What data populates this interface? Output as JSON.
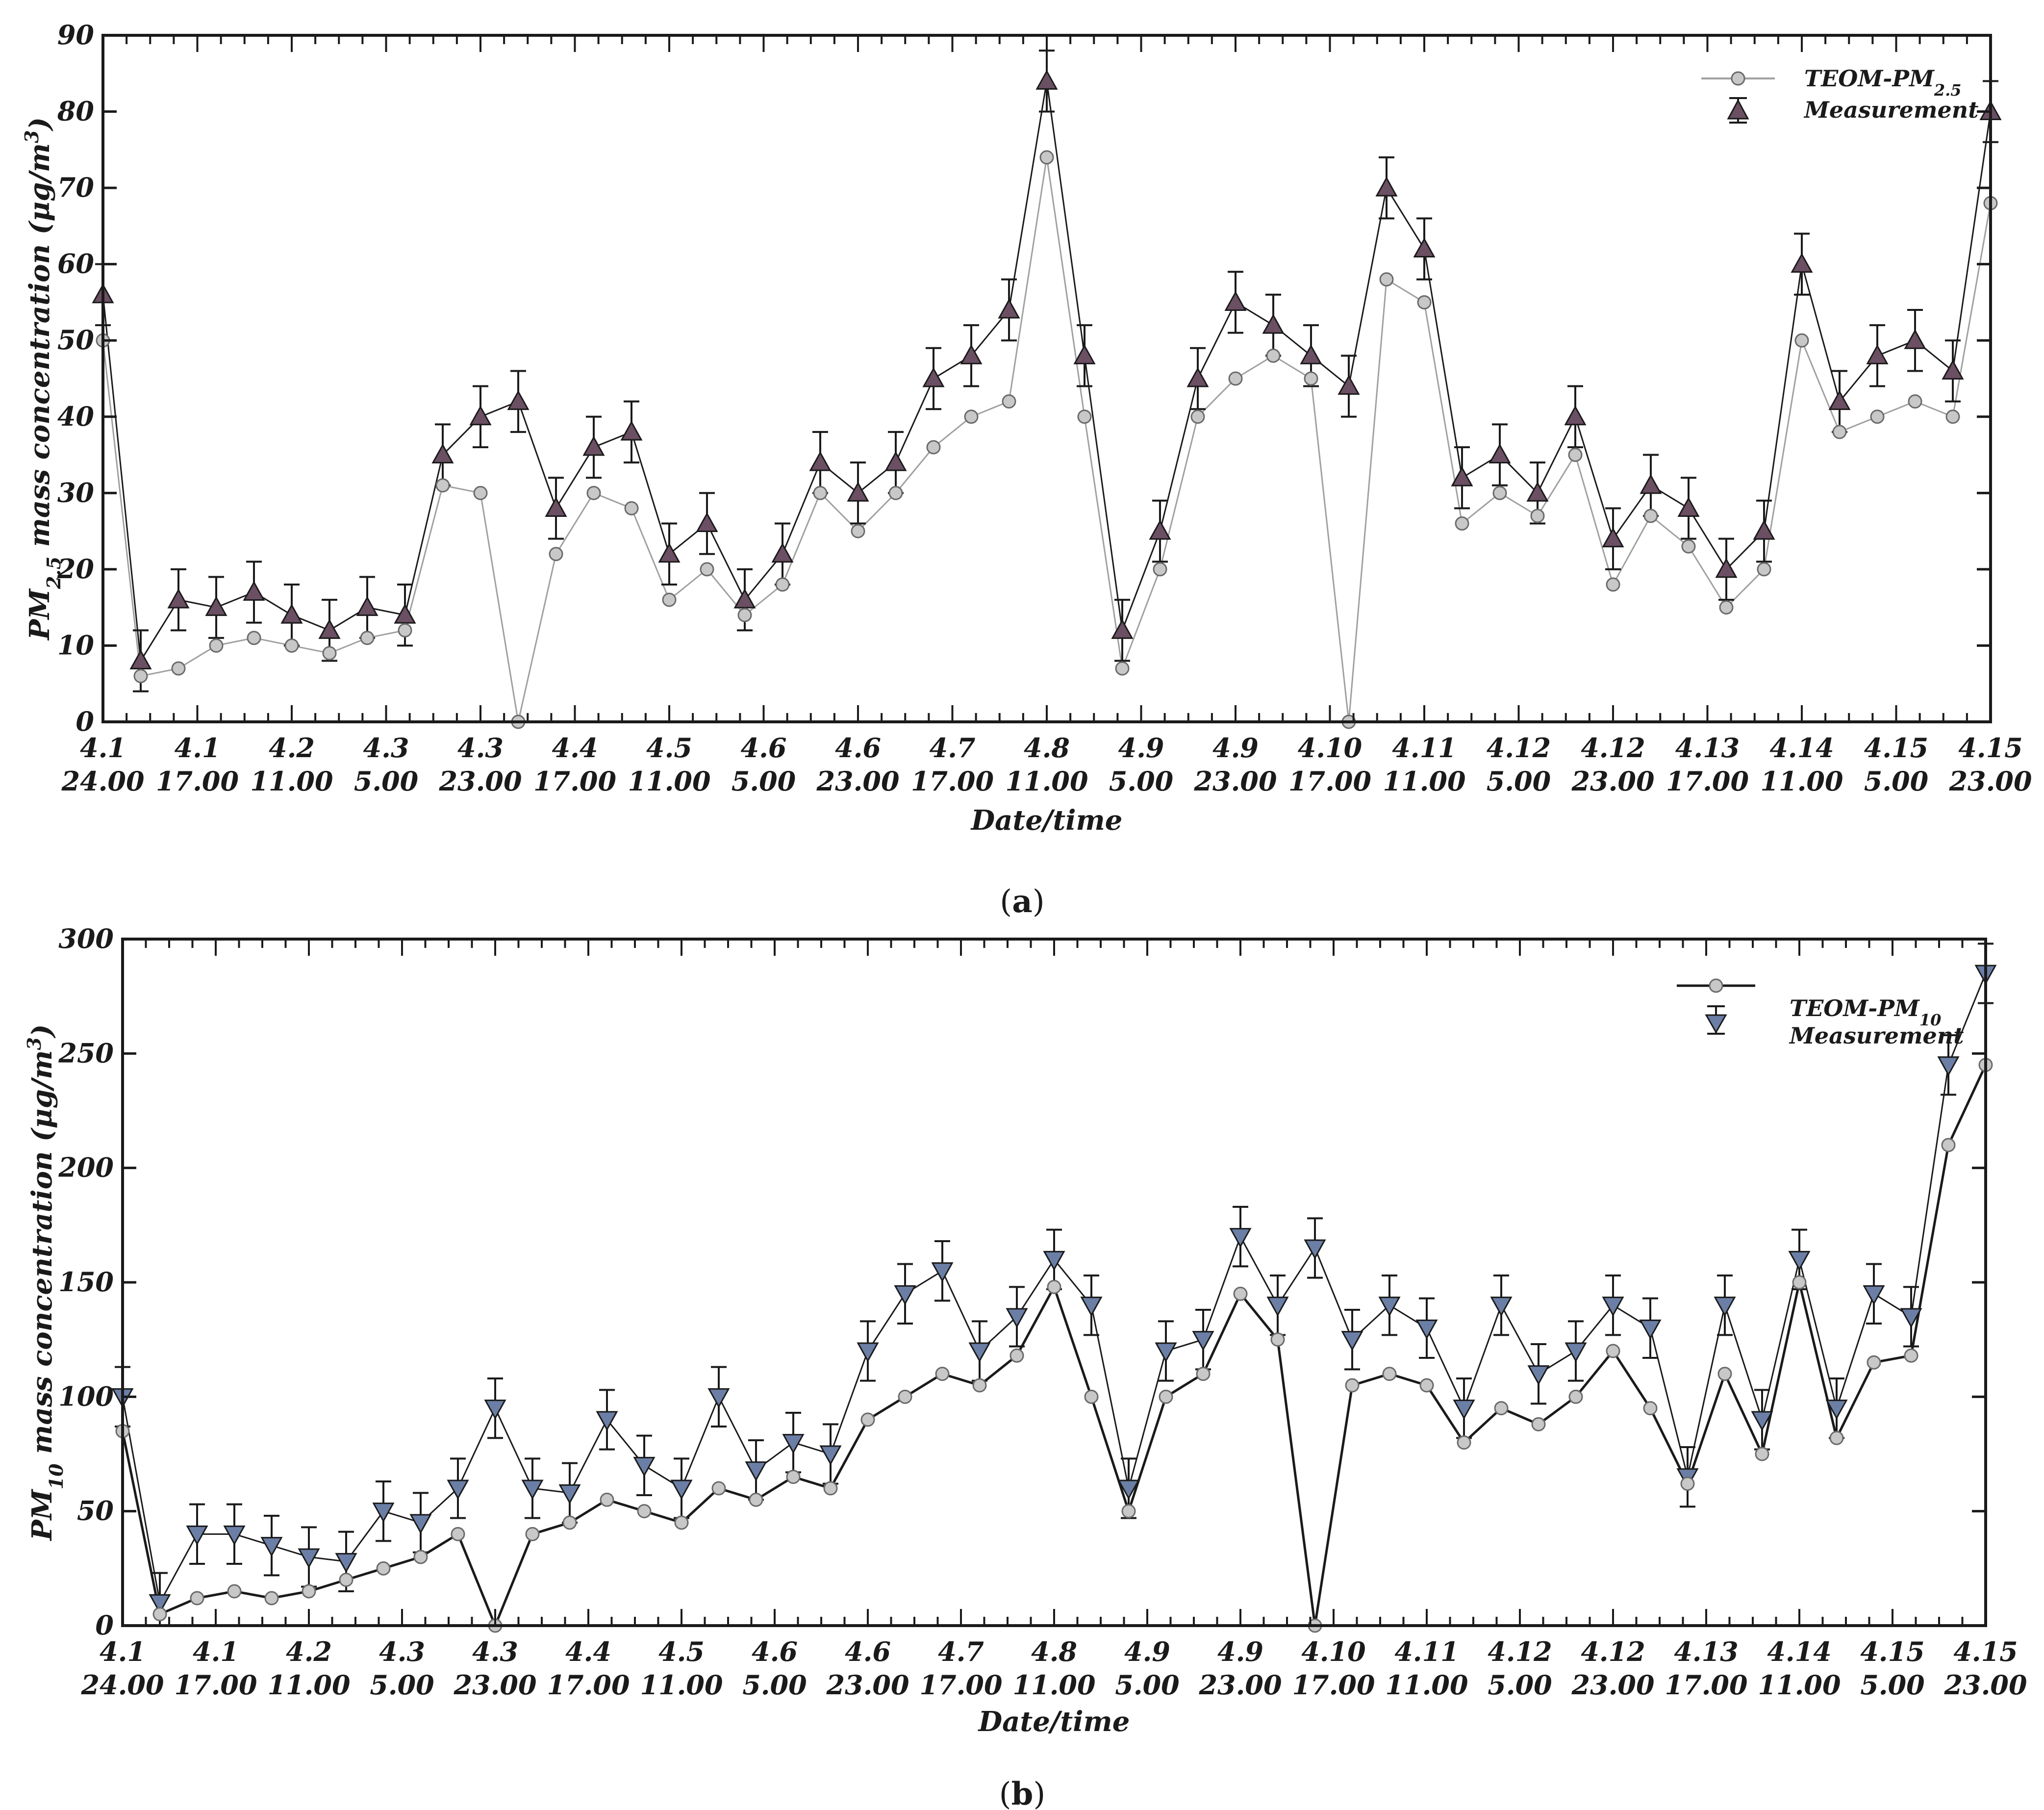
{
  "chart_data": [
    {
      "type": "line",
      "panel_label": "a",
      "title": "",
      "xlabel": "Date/time",
      "ylabel": "PM2.5 mass concentration (μg/m3)",
      "ylabel_parts": {
        "pre": "PM",
        "sub": "2.5",
        "mid": " mass concentration (μg/m",
        "sup": "3",
        "post": ")"
      },
      "ylim": [
        0,
        90
      ],
      "yticks": [
        0,
        10,
        20,
        30,
        40,
        50,
        60,
        70,
        80,
        90
      ],
      "xlim": [
        0,
        1
      ],
      "xtick_labels": [
        {
          "x": 0.0,
          "line1": "4.1",
          "line2": "24.00"
        },
        {
          "x": 0.05,
          "line1": "4.1",
          "line2": "17.00"
        },
        {
          "x": 0.1,
          "line1": "4.2",
          "line2": "11.00"
        },
        {
          "x": 0.15,
          "line1": "4.3",
          "line2": "5.00"
        },
        {
          "x": 0.2,
          "line1": "4.3",
          "line2": "23.00"
        },
        {
          "x": 0.25,
          "line1": "4.4",
          "line2": "17.00"
        },
        {
          "x": 0.3,
          "line1": "4.5",
          "line2": "11.00"
        },
        {
          "x": 0.35,
          "line1": "4.6",
          "line2": "5.00"
        },
        {
          "x": 0.4,
          "line1": "4.6",
          "line2": "23.00"
        },
        {
          "x": 0.45,
          "line1": "4.7",
          "line2": "17.00"
        },
        {
          "x": 0.5,
          "line1": "4.8",
          "line2": "11.00"
        },
        {
          "x": 0.55,
          "line1": "4.9",
          "line2": "5.00"
        },
        {
          "x": 0.6,
          "line1": "4.9",
          "line2": "23.00"
        },
        {
          "x": 0.65,
          "line1": "4.10",
          "line2": "17.00"
        },
        {
          "x": 0.7,
          "line1": "4.11",
          "line2": "11.00"
        },
        {
          "x": 0.75,
          "line1": "4.12",
          "line2": "5.00"
        },
        {
          "x": 0.8,
          "line1": "4.12",
          "line2": "23.00"
        },
        {
          "x": 0.85,
          "line1": "4.13",
          "line2": "17.00"
        },
        {
          "x": 0.9,
          "line1": "4.14",
          "line2": "11.00"
        },
        {
          "x": 0.95,
          "line1": "4.15",
          "line2": "5.00"
        },
        {
          "x": 1.0,
          "line1": "4.15",
          "line2": "23.00"
        }
      ],
      "legend": {
        "placement": "top-right",
        "entries": [
          "TEOM-PM2.5",
          "Measurement"
        ]
      },
      "legend_parts": {
        "pre": "TEOM-PM",
        "sub": "2.5"
      },
      "series": [
        {
          "name": "TEOM-PM2.5",
          "marker": "circle",
          "x": [
            0.0,
            0.02,
            0.04,
            0.06,
            0.08,
            0.1,
            0.12,
            0.14,
            0.16,
            0.18,
            0.2,
            0.22,
            0.24,
            0.26,
            0.28,
            0.3,
            0.32,
            0.34,
            0.36,
            0.38,
            0.4,
            0.42,
            0.44,
            0.46,
            0.48,
            0.5,
            0.52,
            0.54,
            0.56,
            0.58,
            0.6,
            0.62,
            0.64,
            0.66,
            0.68,
            0.7,
            0.72,
            0.74,
            0.76,
            0.78,
            0.8,
            0.82,
            0.84,
            0.86,
            0.88,
            0.9,
            0.92,
            0.94,
            0.96,
            0.98,
            1.0
          ],
          "values": [
            50,
            6,
            7,
            10,
            11,
            10,
            9,
            11,
            12,
            31,
            30,
            0,
            22,
            30,
            28,
            16,
            20,
            14,
            18,
            30,
            25,
            30,
            36,
            40,
            42,
            74,
            40,
            7,
            20,
            40,
            45,
            48,
            45,
            0,
            58,
            55,
            26,
            30,
            27,
            35,
            18,
            27,
            23,
            15,
            20,
            50,
            38,
            40,
            42,
            40,
            68
          ]
        },
        {
          "name": "Measurement",
          "marker": "triangle-up",
          "x": [
            0.0,
            0.02,
            0.04,
            0.06,
            0.08,
            0.1,
            0.12,
            0.14,
            0.16,
            0.18,
            0.2,
            0.22,
            0.24,
            0.26,
            0.28,
            0.3,
            0.32,
            0.34,
            0.36,
            0.38,
            0.4,
            0.42,
            0.44,
            0.46,
            0.48,
            0.5,
            0.52,
            0.54,
            0.56,
            0.58,
            0.6,
            0.62,
            0.64,
            0.66,
            0.68,
            0.7,
            0.72,
            0.74,
            0.76,
            0.78,
            0.8,
            0.82,
            0.84,
            0.86,
            0.88,
            0.9,
            0.92,
            0.94,
            0.96,
            0.98,
            1.0
          ],
          "values": [
            56,
            8,
            16,
            15,
            17,
            14,
            12,
            15,
            14,
            35,
            40,
            42,
            28,
            36,
            38,
            22,
            26,
            16,
            22,
            34,
            30,
            34,
            45,
            48,
            54,
            84,
            48,
            12,
            25,
            45,
            55,
            52,
            48,
            44,
            70,
            62,
            32,
            35,
            30,
            40,
            24,
            31,
            28,
            20,
            25,
            60,
            42,
            48,
            50,
            46,
            80
          ]
        }
      ],
      "error": 4
    },
    {
      "type": "line",
      "panel_label": "b",
      "title": "",
      "xlabel": "Date/time",
      "ylabel": "PM10 mass concentration (μg/m3)",
      "ylabel_parts": {
        "pre": "PM",
        "sub": "10",
        "mid": " mass concentration (μg/m",
        "sup": "3",
        "post": ")"
      },
      "ylim": [
        0,
        300
      ],
      "yticks": [
        0,
        50,
        100,
        150,
        200,
        250,
        300
      ],
      "xlim": [
        0,
        1
      ],
      "xtick_labels": [
        {
          "x": 0.0,
          "line1": "4.1",
          "line2": "24.00"
        },
        {
          "x": 0.05,
          "line1": "4.1",
          "line2": "17.00"
        },
        {
          "x": 0.1,
          "line1": "4.2",
          "line2": "11.00"
        },
        {
          "x": 0.15,
          "line1": "4.3",
          "line2": "5.00"
        },
        {
          "x": 0.2,
          "line1": "4.3",
          "line2": "23.00"
        },
        {
          "x": 0.25,
          "line1": "4.4",
          "line2": "17.00"
        },
        {
          "x": 0.3,
          "line1": "4.5",
          "line2": "11.00"
        },
        {
          "x": 0.35,
          "line1": "4.6",
          "line2": "5.00"
        },
        {
          "x": 0.4,
          "line1": "4.6",
          "line2": "23.00"
        },
        {
          "x": 0.45,
          "line1": "4.7",
          "line2": "17.00"
        },
        {
          "x": 0.5,
          "line1": "4.8",
          "line2": "11.00"
        },
        {
          "x": 0.55,
          "line1": "4.9",
          "line2": "5.00"
        },
        {
          "x": 0.6,
          "line1": "4.9",
          "line2": "23.00"
        },
        {
          "x": 0.65,
          "line1": "4.10",
          "line2": "17.00"
        },
        {
          "x": 0.7,
          "line1": "4.11",
          "line2": "11.00"
        },
        {
          "x": 0.75,
          "line1": "4.12",
          "line2": "5.00"
        },
        {
          "x": 0.8,
          "line1": "4.12",
          "line2": "23.00"
        },
        {
          "x": 0.85,
          "line1": "4.13",
          "line2": "17.00"
        },
        {
          "x": 0.9,
          "line1": "4.14",
          "line2": "11.00"
        },
        {
          "x": 0.95,
          "line1": "4.15",
          "line2": "5.00"
        },
        {
          "x": 1.0,
          "line1": "4.15",
          "line2": "23.00"
        }
      ],
      "legend": {
        "placement": "top-right",
        "entries": [
          "TEOM-PM10",
          "Measurement"
        ]
      },
      "legend_parts": {
        "pre": "TEOM-PM",
        "sub": "10"
      },
      "series": [
        {
          "name": "TEOM-PM10",
          "marker": "circle",
          "x": [
            0.0,
            0.02,
            0.04,
            0.06,
            0.08,
            0.1,
            0.12,
            0.14,
            0.16,
            0.18,
            0.2,
            0.22,
            0.24,
            0.26,
            0.28,
            0.3,
            0.32,
            0.34,
            0.36,
            0.38,
            0.4,
            0.42,
            0.44,
            0.46,
            0.48,
            0.5,
            0.52,
            0.54,
            0.56,
            0.58,
            0.6,
            0.62,
            0.64,
            0.66,
            0.68,
            0.7,
            0.72,
            0.74,
            0.76,
            0.78,
            0.8,
            0.82,
            0.84,
            0.86,
            0.88,
            0.9,
            0.92,
            0.94,
            0.96,
            0.98,
            1.0
          ],
          "values": [
            85,
            5,
            12,
            15,
            12,
            15,
            20,
            25,
            30,
            40,
            0,
            40,
            45,
            55,
            50,
            45,
            60,
            55,
            65,
            60,
            90,
            100,
            110,
            105,
            118,
            148,
            100,
            50,
            100,
            110,
            145,
            125,
            0,
            105,
            110,
            105,
            80,
            95,
            88,
            100,
            120,
            95,
            62,
            110,
            75,
            150,
            82,
            115,
            118,
            210,
            245
          ]
        },
        {
          "name": "Measurement",
          "marker": "triangle-down",
          "x": [
            0.0,
            0.02,
            0.04,
            0.06,
            0.08,
            0.1,
            0.12,
            0.14,
            0.16,
            0.18,
            0.2,
            0.22,
            0.24,
            0.26,
            0.28,
            0.3,
            0.32,
            0.34,
            0.36,
            0.38,
            0.4,
            0.42,
            0.44,
            0.46,
            0.48,
            0.5,
            0.52,
            0.54,
            0.56,
            0.58,
            0.6,
            0.62,
            0.64,
            0.66,
            0.68,
            0.7,
            0.72,
            0.74,
            0.76,
            0.78,
            0.8,
            0.82,
            0.84,
            0.86,
            0.88,
            0.9,
            0.92,
            0.94,
            0.96,
            0.98,
            1.0
          ],
          "values": [
            100,
            10,
            40,
            40,
            35,
            30,
            28,
            50,
            45,
            60,
            95,
            60,
            58,
            90,
            70,
            60,
            100,
            68,
            80,
            75,
            120,
            145,
            155,
            120,
            135,
            160,
            140,
            60,
            120,
            125,
            170,
            140,
            165,
            125,
            140,
            130,
            95,
            140,
            110,
            120,
            140,
            130,
            65,
            140,
            90,
            160,
            95,
            145,
            135,
            245,
            285
          ]
        }
      ],
      "error": 13
    }
  ],
  "colors": {
    "teom_marker_fill": "#c8c8c8",
    "teom_line_a": "#a0a0a0",
    "teom_line_b": "#1a1a1a",
    "triangle_a": "#6b4f63",
    "triangle_b": "#6b7fa6",
    "axis": "#1a1a1a",
    "error_bar": "#1a1a1a"
  }
}
